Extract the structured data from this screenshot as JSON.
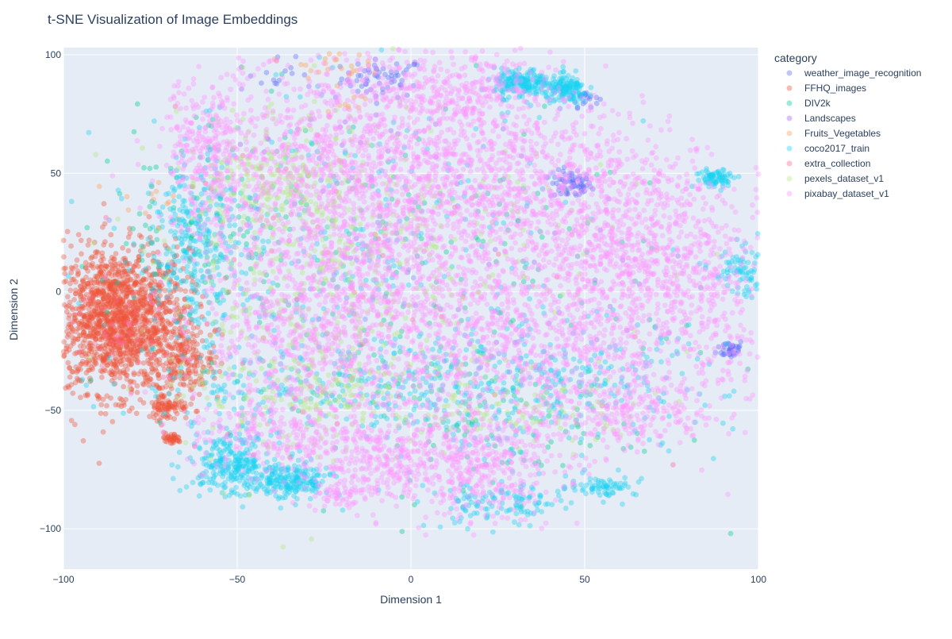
{
  "chart_data": {
    "type": "scatter",
    "title": "t-SNE Visualization of Image Embeddings",
    "xlabel": "Dimension 1",
    "ylabel": "Dimension 2",
    "xlim": [
      -100,
      100
    ],
    "ylim": [
      -117,
      103
    ],
    "xticks": [
      -100,
      -50,
      0,
      50,
      100
    ],
    "yticks": [
      -100,
      -50,
      0,
      50,
      100
    ],
    "xtick_labels": [
      "−100",
      "−50",
      "0",
      "50",
      "100"
    ],
    "ytick_labels": [
      "−100",
      "−50",
      "0",
      "50",
      "100"
    ],
    "grid": true,
    "legend_position": "right",
    "legend_title": "category",
    "series": [
      {
        "name": "weather_image_recognition",
        "color": "#636efa",
        "clusters": [
          [
            -8,
            90,
            6,
            4,
            60
          ],
          [
            46,
            45,
            3,
            3,
            70
          ],
          [
            92,
            -24,
            2,
            2,
            40
          ],
          [
            50,
            82,
            2,
            2,
            20
          ],
          [
            -38,
            90,
            6,
            4,
            15
          ]
        ]
      },
      {
        "name": "FFHQ_images",
        "color": "#ef553b",
        "clusters": [
          [
            -84,
            -12,
            10,
            15,
            1600
          ],
          [
            -70,
            -48,
            3,
            3,
            90
          ],
          [
            -69,
            -62,
            1.5,
            1.2,
            40
          ],
          [
            -65,
            -30,
            4,
            6,
            150
          ]
        ]
      },
      {
        "name": "DIV2k",
        "color": "#00cc96",
        "clusters": [
          [
            -10,
            0,
            45,
            40,
            250
          ],
          [
            -60,
            30,
            10,
            20,
            80
          ],
          [
            30,
            -60,
            20,
            10,
            60
          ]
        ]
      },
      {
        "name": "Landscapes",
        "color": "#ab63fa",
        "clusters": [
          [
            40,
            20,
            30,
            30,
            30
          ],
          [
            -20,
            60,
            20,
            20,
            30
          ]
        ]
      },
      {
        "name": "Fruits_Vegetables",
        "color": "#ffa15a",
        "clusters": [
          [
            -25,
            96,
            6,
            3,
            25
          ],
          [
            -18,
            80,
            4,
            3,
            10
          ],
          [
            -75,
            40,
            5,
            5,
            15
          ]
        ]
      },
      {
        "name": "coco2017_train",
        "color": "#19d3f3",
        "clusters": [
          [
            32,
            88,
            4,
            3,
            200
          ],
          [
            45,
            85,
            3,
            3,
            150
          ],
          [
            -52,
            -72,
            6,
            6,
            250
          ],
          [
            -35,
            -80,
            6,
            4,
            220
          ],
          [
            -62,
            20,
            6,
            18,
            280
          ],
          [
            -10,
            -40,
            35,
            10,
            350
          ],
          [
            40,
            -40,
            25,
            15,
            250
          ],
          [
            88,
            48,
            3,
            2,
            80
          ],
          [
            55,
            -82,
            5,
            2,
            70
          ],
          [
            -20,
            20,
            35,
            30,
            300
          ],
          [
            95,
            8,
            4,
            5,
            80
          ],
          [
            25,
            -90,
            10,
            5,
            120
          ]
        ]
      },
      {
        "name": "extra_collection",
        "color": "#ff6692",
        "clusters": [
          [
            -20,
            10,
            40,
            40,
            60
          ],
          [
            -82,
            -18,
            8,
            10,
            40
          ]
        ]
      },
      {
        "name": "pexels_dataset_v1",
        "color": "#b6e880",
        "clusters": [
          [
            -30,
            10,
            20,
            40,
            450
          ],
          [
            -40,
            45,
            10,
            10,
            150
          ],
          [
            -20,
            -40,
            20,
            10,
            150
          ],
          [
            30,
            -50,
            20,
            8,
            100
          ],
          [
            10,
            20,
            30,
            20,
            120
          ]
        ]
      },
      {
        "name": "pixabay_dataset_v1",
        "color": "#ff97ff",
        "clusters": [
          [
            -20,
            60,
            20,
            20,
            700
          ],
          [
            20,
            55,
            18,
            20,
            600
          ],
          [
            55,
            35,
            18,
            20,
            600
          ],
          [
            70,
            5,
            15,
            20,
            500
          ],
          [
            40,
            -25,
            20,
            20,
            550
          ],
          [
            0,
            -15,
            30,
            25,
            800
          ],
          [
            -30,
            -20,
            15,
            20,
            400
          ],
          [
            -10,
            25,
            25,
            20,
            600
          ],
          [
            -5,
            -70,
            15,
            10,
            400
          ],
          [
            20,
            -75,
            12,
            10,
            300
          ],
          [
            65,
            -50,
            10,
            8,
            200
          ],
          [
            -55,
            50,
            8,
            20,
            200
          ],
          [
            10,
            85,
            15,
            8,
            250
          ],
          [
            -40,
            -60,
            12,
            8,
            180
          ],
          [
            -60,
            65,
            5,
            10,
            100
          ],
          [
            -20,
            -85,
            5,
            3,
            60
          ],
          [
            90,
            -15,
            6,
            20,
            120
          ]
        ]
      }
    ]
  }
}
